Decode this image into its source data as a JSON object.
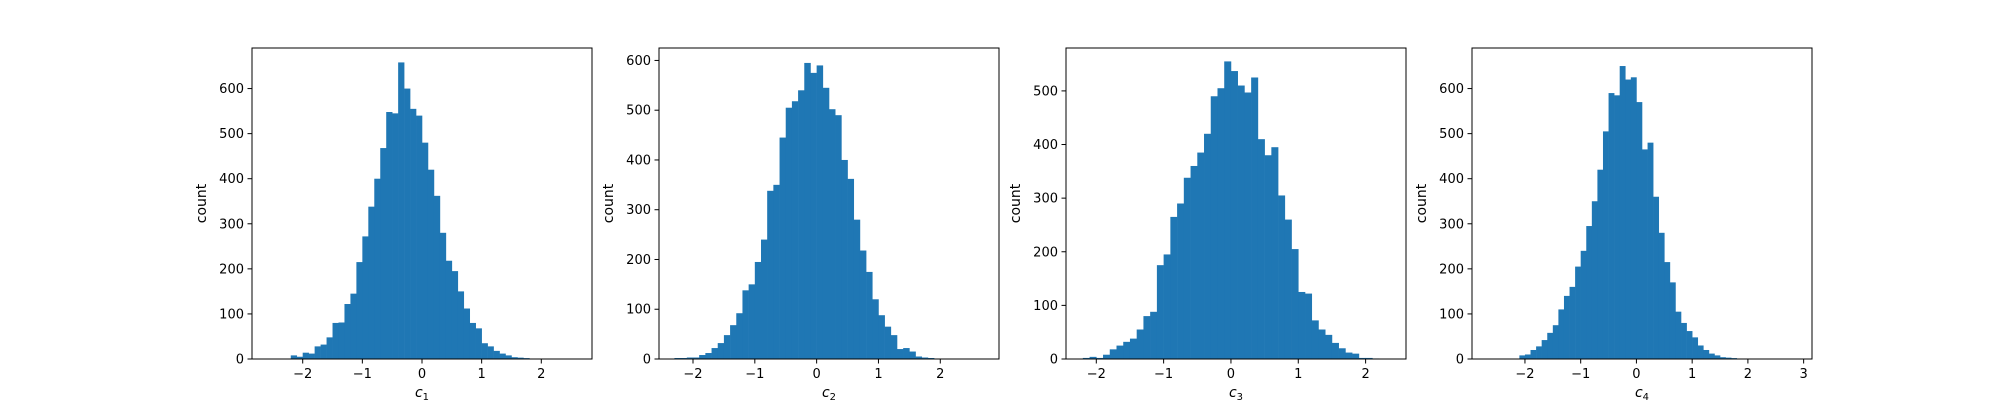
{
  "figure": {
    "bar_color": "#1f77b4"
  },
  "chart_data": [
    {
      "type": "bar",
      "xlabel": "c",
      "xlabel_subscript": "1",
      "ylabel": "count",
      "xlim": [
        -2.85,
        2.85
      ],
      "ylim": [
        0,
        690
      ],
      "xticks": [
        -2,
        -1,
        0,
        1,
        2
      ],
      "yticks": [
        0,
        100,
        200,
        300,
        400,
        500,
        600
      ],
      "bins": {
        "start": -2.2,
        "width": 0.1
      },
      "values": [
        8,
        5,
        14,
        12,
        28,
        32,
        48,
        80,
        81,
        122,
        145,
        215,
        272,
        338,
        400,
        468,
        548,
        545,
        658,
        600,
        555,
        540,
        480,
        420,
        362,
        280,
        218,
        195,
        150,
        112,
        80,
        68,
        35,
        28,
        18,
        12,
        8,
        4,
        3,
        2
      ]
    },
    {
      "type": "bar",
      "xlabel": "c",
      "xlabel_subscript": "2",
      "ylabel": "count",
      "xlim": [
        -2.55,
        2.95
      ],
      "ylim": [
        0,
        625
      ],
      "xticks": [
        -2,
        -1,
        0,
        1,
        2
      ],
      "yticks": [
        0,
        100,
        200,
        300,
        400,
        500,
        600
      ],
      "bins": {
        "start": -2.3,
        "width": 0.1
      },
      "values": [
        2,
        2,
        3,
        3,
        8,
        12,
        22,
        32,
        48,
        68,
        92,
        138,
        150,
        195,
        240,
        338,
        350,
        445,
        505,
        518,
        540,
        595,
        575,
        590,
        545,
        502,
        490,
        400,
        362,
        280,
        218,
        175,
        120,
        88,
        65,
        48,
        20,
        22,
        15,
        5,
        3,
        2,
        1
      ]
    },
    {
      "type": "bar",
      "xlabel": "c",
      "xlabel_subscript": "3",
      "ylabel": "count",
      "xlim": [
        -2.45,
        2.6
      ],
      "ylim": [
        0,
        580
      ],
      "xticks": [
        -2,
        -1,
        0,
        1,
        2
      ],
      "yticks": [
        0,
        100,
        200,
        300,
        400,
        500
      ],
      "bins": {
        "start": -2.2,
        "width": 0.1
      },
      "values": [
        2,
        4,
        2,
        8,
        18,
        25,
        32,
        38,
        55,
        80,
        88,
        175,
        195,
        265,
        290,
        338,
        360,
        385,
        420,
        490,
        505,
        555,
        537,
        510,
        497,
        525,
        410,
        380,
        395,
        305,
        260,
        205,
        125,
        122,
        72,
        55,
        45,
        30,
        20,
        12,
        10,
        2,
        2,
        1
      ]
    },
    {
      "type": "bar",
      "xlabel": "c",
      "xlabel_subscript": "4",
      "ylabel": "count",
      "xlim": [
        -2.95,
        3.15
      ],
      "ylim": [
        0,
        690
      ],
      "xticks": [
        -2,
        -1,
        0,
        1,
        2,
        3
      ],
      "yticks": [
        0,
        100,
        200,
        300,
        400,
        500,
        600
      ],
      "bins": {
        "start": -2.1,
        "width": 0.1
      },
      "values": [
        8,
        10,
        20,
        28,
        42,
        58,
        75,
        110,
        140,
        160,
        205,
        240,
        295,
        350,
        420,
        505,
        590,
        585,
        650,
        620,
        625,
        570,
        465,
        480,
        360,
        280,
        215,
        170,
        105,
        80,
        62,
        48,
        30,
        20,
        12,
        8,
        4,
        3,
        2,
        1,
        1
      ]
    }
  ]
}
